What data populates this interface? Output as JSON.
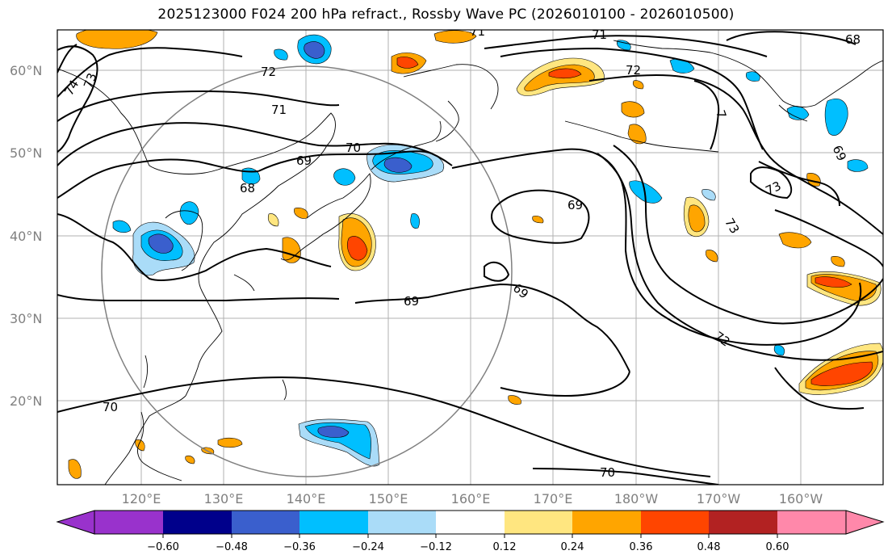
{
  "title": "2025123000 F024 200 hPa refract., Rossby Wave PC (2026010100 - 2026010500)",
  "lat_labels": [
    "60°N",
    "50°N",
    "40°N",
    "30°N",
    "20°N"
  ],
  "lon_labels": [
    "120°E",
    "130°E",
    "140°E",
    "150°E",
    "160°E",
    "170°E",
    "180°W",
    "170°W",
    "160°W"
  ],
  "contour_labels": [
    "74",
    "73",
    "72",
    "71",
    "71",
    "70",
    "69",
    "68",
    "69",
    "69",
    "69",
    "73",
    "73",
    "72",
    "7",
    "69",
    "72",
    "70",
    "70",
    "71",
    "68"
  ],
  "colorbar": {
    "ticks": [
      "−0.60",
      "−0.48",
      "−0.36",
      "−0.24",
      "−0.12",
      "0.12",
      "0.24",
      "0.36",
      "0.48",
      "0.60"
    ],
    "colors": [
      "#9932cc",
      "#00008b",
      "#3a5fcd",
      "#00bfff",
      "#aadcf8",
      "#ffffff",
      "#ffe680",
      "#ffa500",
      "#ff4500",
      "#b22222",
      "#ff88aa"
    ]
  },
  "shading_colors": {
    "neg_light": "#aadcf8",
    "neg_mid": "#00bfff",
    "neg_dark": "#3a5fcd",
    "pos_light": "#ffe680",
    "pos_mid": "#ffa500",
    "pos_dark": "#ff4500"
  }
}
